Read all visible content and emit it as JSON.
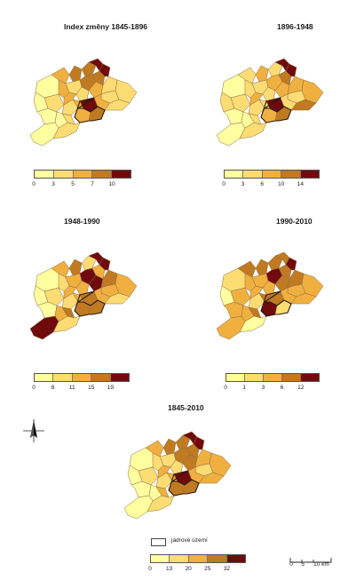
{
  "colors": {
    "class1": "#ffffa0",
    "class2": "#fddc74",
    "class3": "#f0b040",
    "class4": "#c07a22",
    "class5": "#700a0c",
    "outline": "#8a6e44",
    "core_outline": "#2a1a10"
  },
  "panels": [
    {
      "title": "Index změny 1845-1896",
      "legend_ticks": [
        "0",
        "3",
        "5",
        "7",
        "10"
      ],
      "fills": [
        1,
        1,
        2,
        3,
        3,
        2,
        3,
        4,
        2,
        2,
        3,
        4,
        4,
        5,
        1,
        1,
        2,
        5,
        3,
        4,
        3,
        5,
        2,
        2,
        3,
        4,
        2,
        2,
        1,
        2
      ]
    },
    {
      "title": "1896-1948",
      "legend_ticks": [
        "0",
        "3",
        "6",
        "10",
        "14"
      ],
      "fills": [
        1,
        2,
        2,
        2,
        2,
        2,
        3,
        3,
        2,
        2,
        2,
        2,
        3,
        5,
        1,
        1,
        2,
        5,
        3,
        4,
        3,
        5,
        3,
        2,
        2,
        4,
        3,
        4,
        1,
        2
      ]
    },
    {
      "title": "1948-1990",
      "legend_ticks": [
        "0",
        "8",
        "11",
        "15",
        "19"
      ],
      "fills": [
        1,
        1,
        2,
        3,
        2,
        2,
        3,
        4,
        3,
        3,
        3,
        2,
        5,
        5,
        1,
        3,
        4,
        4,
        4,
        3,
        5,
        5,
        4,
        3,
        3,
        4,
        3,
        2,
        5,
        2
      ]
    },
    {
      "title": "1990-2010",
      "legend_ticks": [
        "0",
        "1",
        "3",
        "6",
        "12"
      ],
      "fills": [
        2,
        1,
        3,
        4,
        3,
        2,
        3,
        4,
        3,
        3,
        4,
        4,
        5,
        4,
        3,
        3,
        4,
        4,
        5,
        4,
        4,
        5,
        4,
        3,
        3,
        2,
        3,
        3,
        3,
        1
      ]
    },
    {
      "title": "1845-2010",
      "legend_ticks": [
        "0",
        "13",
        "20",
        "25",
        "32"
      ],
      "fills": [
        1,
        1,
        2,
        3,
        2,
        2,
        3,
        4,
        2,
        2,
        3,
        4,
        4,
        5,
        1,
        1,
        3,
        5,
        4,
        4,
        4,
        5,
        3,
        2,
        3,
        4,
        3,
        3,
        1,
        2
      ]
    }
  ],
  "legend_core": {
    "label": "jádrové území"
  },
  "scale": {
    "ticks": [
      "0",
      "5",
      "10 km"
    ]
  },
  "compass_icon": "north-arrow-icon"
}
